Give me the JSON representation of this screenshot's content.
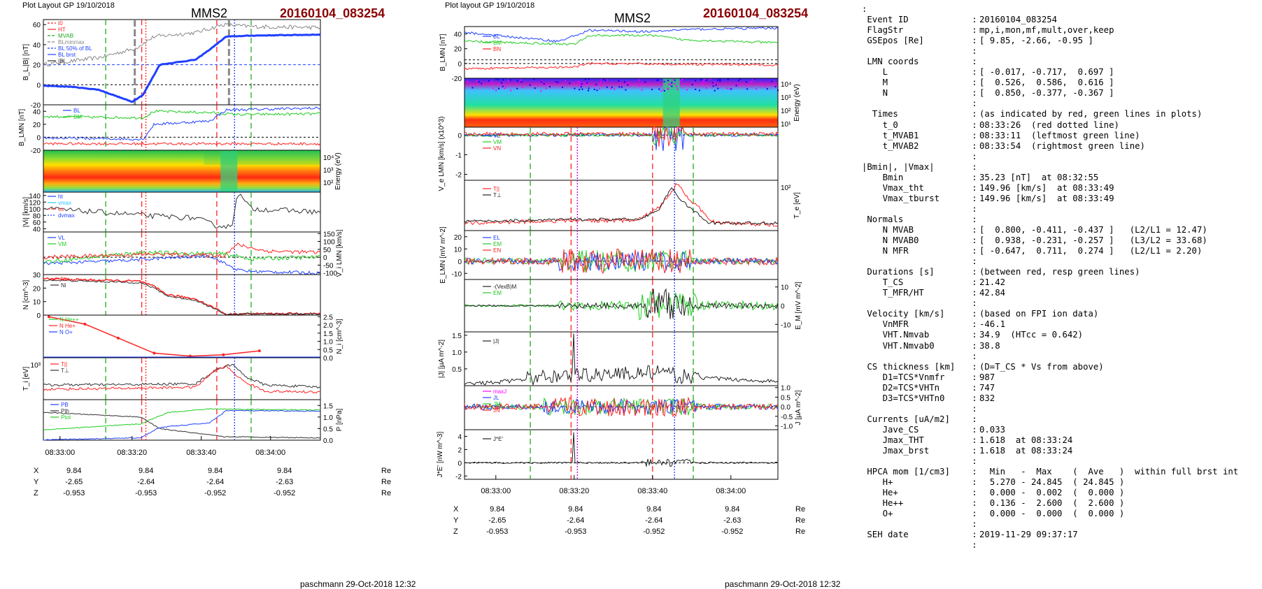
{
  "left_panel": {
    "header": "Plot Layout GP 19/10/2018",
    "spacecraft": "MMS2",
    "event": "20160104_083254",
    "footer": "paschmann 29-Oct-2018 12:32",
    "time_ticks": [
      "08:33:00",
      "08:33:20",
      "08:33:40",
      "08:34:00"
    ],
    "coord_rows": [
      {
        "label": "X",
        "values": [
          "9.84",
          "9.84",
          "9.84",
          "9.84"
        ],
        "unit": "Re"
      },
      {
        "label": "Y",
        "values": [
          "-2.65",
          "-2.64",
          "-2.64",
          "-2.63"
        ],
        "unit": "Re"
      },
      {
        "label": "Z",
        "values": [
          "-0.953",
          "-0.953",
          "-0.952",
          "-0.952"
        ],
        "unit": "Re"
      }
    ]
  },
  "right_panel": {
    "header": "Plot layout GP 19/10/2018",
    "spacecraft": "MMS2",
    "event": "20160104_083254",
    "footer": "paschmann 29-Oct-2018 12:32",
    "time_ticks": [
      "08:33:00",
      "08:33:20",
      "08:33:40",
      "08:34:00"
    ],
    "coord_rows": [
      {
        "label": "X",
        "values": [
          "9.84",
          "9.84",
          "9.84",
          "9.84"
        ],
        "unit": "Re"
      },
      {
        "label": "Y",
        "values": [
          "-2.65",
          "-2.64",
          "-2.64",
          "-2.63"
        ],
        "unit": "Re"
      },
      {
        "label": "Z",
        "values": [
          "-0.953",
          "-0.953",
          "-0.952",
          "-0.952"
        ],
        "unit": "Re"
      }
    ]
  },
  "summary_lines": [
    [
      ":",
      "",
      ""
    ],
    [
      "",
      " Event ID",
      "20160104_083254"
    ],
    [
      "",
      " FlagStr",
      "mp,i,mon,mf,mult,over,keep"
    ],
    [
      "",
      " GSEpos [Re]",
      "[ 9.85, -2.66, -0.95 ]"
    ],
    [
      "",
      "",
      ""
    ],
    [
      "",
      " LMN coords",
      ""
    ],
    [
      "",
      "    L",
      "[ -0.017, -0.717,  0.697 ]"
    ],
    [
      "",
      "    M",
      "[  0.526,  0.586,  0.616 ]"
    ],
    [
      "",
      "    N",
      "[  0.850, -0.377, -0.367 ]"
    ],
    [
      "",
      "",
      ""
    ],
    [
      "",
      "  Times",
      "(as indicated by red, green lines in plots)"
    ],
    [
      "",
      "    t_0",
      "08:33:26  (red dotted line)"
    ],
    [
      "",
      "    t_MVAB1",
      "08:33:11  (leftmost green line)"
    ],
    [
      "",
      "    t_MVAB2",
      "08:33:54  (rightmost green line)"
    ],
    [
      "",
      "",
      ""
    ],
    [
      "",
      "|Bmin|, |Vmax|",
      ""
    ],
    [
      "",
      "    Bmin",
      "35.23 [nT]  at 08:32:55"
    ],
    [
      "",
      "    Vmax_tht",
      "149.96 [km/s]  at 08:33:49"
    ],
    [
      "",
      "    Vmax_tburst",
      "149.96 [km/s]  at 08:33:49"
    ],
    [
      "",
      "",
      ""
    ],
    [
      "",
      " Normals",
      ""
    ],
    [
      "",
      "    N MVAB",
      "[  0.800, -0.411, -0.437 ]   (L2/L1 = 12.47)"
    ],
    [
      "",
      "    N MVAB0",
      "[  0.938, -0.231, -0.257 ]   (L3/L2 = 33.68)"
    ],
    [
      "",
      "    N MFR",
      "[ -0.647,  0.711,  0.274 ]   (L2/L1 = 2.20)"
    ],
    [
      "",
      "",
      ""
    ],
    [
      "",
      " Durations [s]",
      "(between red, resp green lines)"
    ],
    [
      "",
      "    T_CS",
      "21.42"
    ],
    [
      "",
      "    T_MFR/HT",
      "42.84"
    ],
    [
      "",
      "",
      ""
    ],
    [
      "",
      " Velocity [km/s]",
      "(based on FPI ion data)"
    ],
    [
      "",
      "    VnMFR",
      "-46.1"
    ],
    [
      "",
      "    VHT.Nmvab",
      "34.9  (HTcc = 0.642)"
    ],
    [
      "",
      "    VHT.Nmvab0",
      "38.8"
    ],
    [
      "",
      "",
      ""
    ],
    [
      "",
      " CS thickness [km]",
      "(D=T_CS * Vs from above)"
    ],
    [
      "",
      "    D1=TCS*Vnmfr",
      "987"
    ],
    [
      "",
      "    D2=TCS*VHTn",
      "747"
    ],
    [
      "",
      "    D3=TCS*VHTn0",
      "832"
    ],
    [
      "",
      "",
      ""
    ],
    [
      "",
      " Currents [uA/m2]",
      ""
    ],
    [
      "",
      "    Jave_CS",
      "0.033"
    ],
    [
      "",
      "    Jmax_THT",
      "1.618  at 08:33:24"
    ],
    [
      "",
      "    Jmax_brst",
      "1.618  at 08:33:24"
    ],
    [
      "",
      "",
      ""
    ],
    [
      "",
      " HPCA mom [1/cm3]",
      "  Min   -  Max    (  Ave   )  within full brst int"
    ],
    [
      "",
      "    H+",
      "  5.270 - 24.845  ( 24.845 )"
    ],
    [
      "",
      "    He+",
      "  0.000 -  0.002  (  0.000 )"
    ],
    [
      "",
      "    He++",
      "  0.136 -  2.600  (  2.600 )"
    ],
    [
      "",
      "    O+",
      "  0.000 -  0.000  (  0.000 )"
    ],
    [
      "",
      "",
      ""
    ],
    [
      "",
      " SEH date",
      "2019-11-29 09:37:17"
    ],
    [
      "",
      "",
      ""
    ]
  ],
  "chart_data": [
    {
      "type": "line",
      "panel": "left",
      "ylabel": "B_L,|B| [nT]",
      "ylim": [
        -20,
        65
      ],
      "yticks": [
        "60",
        "40",
        "20",
        "0",
        "-20"
      ],
      "series": [
        {
          "name": "BL",
          "color": "#1f3fff"
        },
        {
          "name": "|B|",
          "color": "#777777"
        }
      ],
      "legend": [
        "t0",
        "HT",
        "MVAB",
        "BLminmax",
        "BL 50% of BL",
        "BL brst",
        "|B|"
      ]
    },
    {
      "type": "line",
      "panel": "left",
      "ylabel": "B_LMN [nT]",
      "ylim": [
        -20,
        50
      ],
      "yticks": [
        "40",
        "20",
        "0",
        "-20"
      ],
      "series": [
        {
          "name": "BL",
          "color": "#1f3fff"
        },
        {
          "name": "BM",
          "color": "#22cc22"
        },
        {
          "name": "BN",
          "color": "#ff2222"
        }
      ]
    },
    {
      "type": "heatmap",
      "panel": "left",
      "ylabel": "Energy (eV)",
      "yticks": [
        "10^4",
        "10^3",
        "10^2"
      ]
    },
    {
      "type": "line",
      "panel": "left",
      "ylabel": "|Vi| [km/s]",
      "ylim": [
        30,
        150
      ],
      "yticks": [
        "140",
        "120",
        "100",
        "80",
        "60",
        "40"
      ],
      "legend": [
        "ht",
        "vmax",
        "cs",
        "dvmax"
      ]
    },
    {
      "type": "line",
      "panel": "left",
      "ylabel": "V_i LMN [km/s]",
      "ylim": [
        -110,
        160
      ],
      "yticks": [
        "150",
        "100",
        "50",
        "0",
        "-50",
        "-100"
      ],
      "series": [
        {
          "name": "VL",
          "color": "#1f3fff"
        },
        {
          "name": "VM",
          "color": "#22cc22"
        },
        {
          "name": "VN",
          "color": "#ff2222"
        }
      ]
    },
    {
      "type": "line",
      "panel": "left",
      "ylabel": "N [cm^-3]",
      "ylim": [
        0,
        30
      ],
      "yticks": [
        "30",
        "20",
        "10",
        "0"
      ],
      "series": [
        {
          "name": "Ne",
          "color": "#ff2222"
        },
        {
          "name": "Ni",
          "color": "#222222"
        }
      ]
    },
    {
      "type": "line",
      "panel": "left",
      "ylabel": "N_i [cm^-3]",
      "ylim": [
        0,
        2.6
      ],
      "yticks": [
        "2.5",
        "2.0",
        "1.5",
        "1.0",
        "0.5",
        "0.0"
      ],
      "series": [
        {
          "name": "N He++",
          "color": "#22cc22"
        },
        {
          "name": "N He+",
          "color": "#ff2222"
        },
        {
          "name": "N O+",
          "color": "#1f3fff"
        }
      ]
    },
    {
      "type": "line",
      "panel": "left",
      "ylabel": "T_i [eV]",
      "yticks": [
        "10^3"
      ],
      "series": [
        {
          "name": "T||",
          "color": "#ff2222"
        },
        {
          "name": "T⊥",
          "color": "#222222"
        }
      ]
    },
    {
      "type": "line",
      "panel": "left",
      "ylabel": "P [nPa]",
      "ylim": [
        0,
        1.75
      ],
      "yticks": [
        "1.5",
        "1.0",
        "0.5",
        "0.0"
      ],
      "series": [
        {
          "name": "PB",
          "color": "#1f3fff"
        },
        {
          "name": "Pth",
          "color": "#222222"
        },
        {
          "name": "Ptot",
          "color": "#22cc22"
        }
      ]
    },
    {
      "type": "line",
      "panel": "right",
      "ylabel": "B_LMN [nT]",
      "ylim": [
        -20,
        50
      ],
      "yticks": [
        "40",
        "20",
        "0",
        "-20"
      ],
      "series": [
        {
          "name": "BL",
          "color": "#1f3fff"
        },
        {
          "name": "BM",
          "color": "#22cc22"
        },
        {
          "name": "BN",
          "color": "#ff2222"
        }
      ]
    },
    {
      "type": "heatmap",
      "panel": "right",
      "ylabel": "Energy (eV)",
      "yticks": [
        "10^4",
        "10^3",
        "10^2",
        "10^1"
      ]
    },
    {
      "type": "line",
      "panel": "right",
      "ylabel": "V_e LMN [km/s] (x10^3)",
      "ylim": [
        -2.3,
        0.4
      ],
      "yticks": [
        "0",
        "-1",
        "-2"
      ],
      "series": [
        {
          "name": "VL",
          "color": "#1f3fff"
        },
        {
          "name": "VM",
          "color": "#22cc22"
        },
        {
          "name": "VN",
          "color": "#ff2222"
        }
      ]
    },
    {
      "type": "line",
      "panel": "right",
      "ylabel": "T_e [eV]",
      "yticks": [
        "10^2"
      ],
      "series": [
        {
          "name": "T||",
          "color": "#ff2222"
        },
        {
          "name": "T⊥",
          "color": "#222222"
        }
      ]
    },
    {
      "type": "line",
      "panel": "right",
      "ylabel": "E_LMN [mV m^-2]",
      "ylim": [
        -15,
        25
      ],
      "yticks": [
        "20",
        "10",
        "0",
        "-10"
      ],
      "series": [
        {
          "name": "EL",
          "color": "#1f3fff"
        },
        {
          "name": "EM",
          "color": "#22cc22"
        },
        {
          "name": "EN",
          "color": "#ff2222"
        }
      ]
    },
    {
      "type": "line",
      "panel": "right",
      "ylabel": "E_M [mV m^-2]",
      "ylim": [
        -14,
        14
      ],
      "yticks": [
        "10",
        "0",
        "-10"
      ],
      "series": [
        {
          "name": "-(VexB)M",
          "color": "#222222"
        },
        {
          "name": "EM",
          "color": "#22cc22"
        }
      ]
    },
    {
      "type": "line",
      "panel": "right",
      "ylabel": "|J| [µA m^-2]",
      "ylim": [
        0,
        1.6
      ],
      "yticks": [
        "1.5",
        "1.0",
        "0.5"
      ],
      "series": [
        {
          "name": "|J|",
          "color": "#222222"
        }
      ]
    },
    {
      "type": "line",
      "panel": "right",
      "ylabel": "J [µA m^-2]",
      "ylim": [
        -1.2,
        1.1
      ],
      "yticks": [
        "1.0",
        "0.5",
        "0.0",
        "-0.5",
        "-1.0"
      ],
      "series": [
        {
          "name": "maxJ",
          "color": "#ff00ff"
        },
        {
          "name": "JL",
          "color": "#1f3fff"
        },
        {
          "name": "JM",
          "color": "#22cc22"
        },
        {
          "name": "JN",
          "color": "#ff2222"
        }
      ]
    },
    {
      "type": "line",
      "panel": "right",
      "ylabel": "J*E' [nW m^-3]",
      "ylim": [
        -2.5,
        5
      ],
      "yticks": [
        "4",
        "2",
        "0",
        "-2"
      ],
      "series": [
        {
          "name": "J*E'",
          "color": "#222222"
        }
      ]
    }
  ]
}
